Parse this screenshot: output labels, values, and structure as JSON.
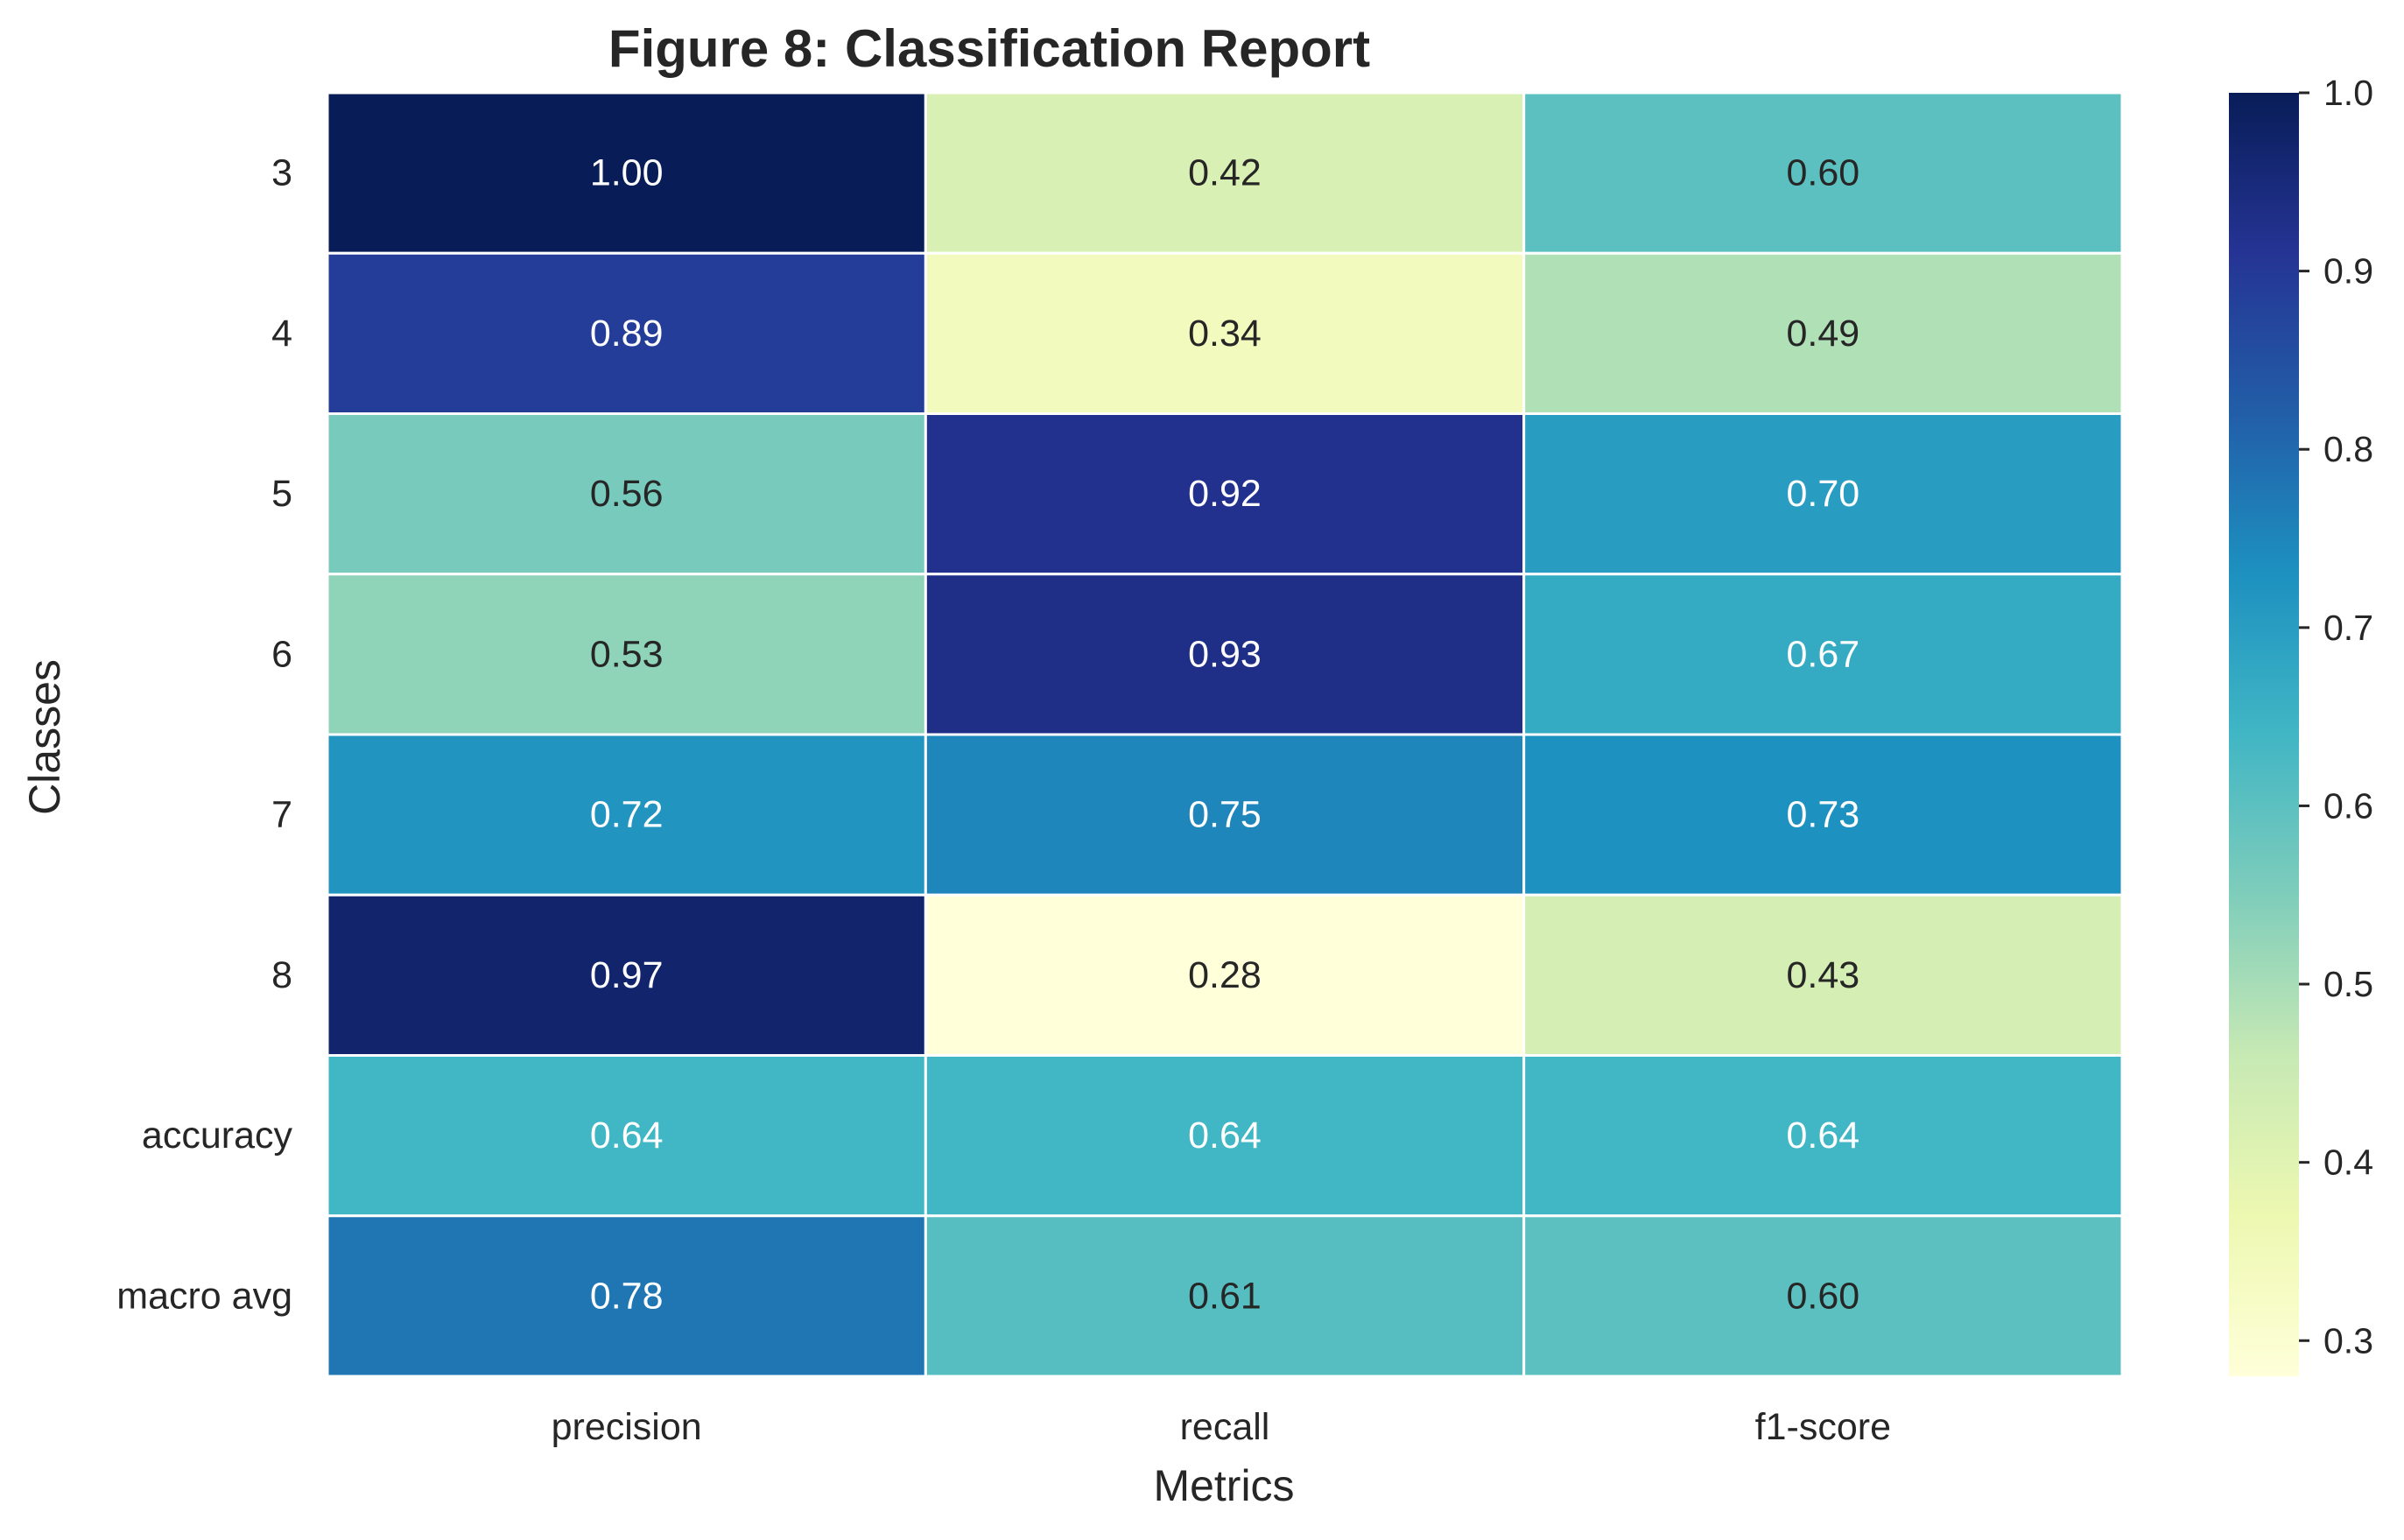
{
  "chart_data": {
    "type": "heatmap",
    "title": "Figure 8: Classification Report",
    "xlabel": "Metrics",
    "ylabel": "Classes",
    "columns": [
      "precision",
      "recall",
      "f1-score"
    ],
    "rows": [
      "3",
      "4",
      "5",
      "6",
      "7",
      "8",
      "accuracy",
      "macro avg"
    ],
    "values": [
      [
        1.0,
        0.42,
        0.6
      ],
      [
        0.89,
        0.34,
        0.49
      ],
      [
        0.56,
        0.92,
        0.7
      ],
      [
        0.53,
        0.93,
        0.67
      ],
      [
        0.72,
        0.75,
        0.73
      ],
      [
        0.97,
        0.28,
        0.43
      ],
      [
        0.64,
        0.64,
        0.64
      ],
      [
        0.78,
        0.61,
        0.6
      ]
    ],
    "value_format": "0.00",
    "colormap": "YlGnBu",
    "colormap_stops": [
      "#ffffd9",
      "#edf8b1",
      "#c7e9b4",
      "#7fcdbb",
      "#41b6c4",
      "#1d91c0",
      "#225ea8",
      "#253494",
      "#081d58"
    ],
    "vmin": 0.28,
    "vmax": 1.0,
    "colorbar_ticks": [
      "0.3",
      "0.4",
      "0.5",
      "0.6",
      "0.7",
      "0.8",
      "0.9",
      "1.0"
    ],
    "cell_border_color": "#ffffff",
    "text_color_dark": "#262626",
    "text_color_light": "#ffffff"
  }
}
